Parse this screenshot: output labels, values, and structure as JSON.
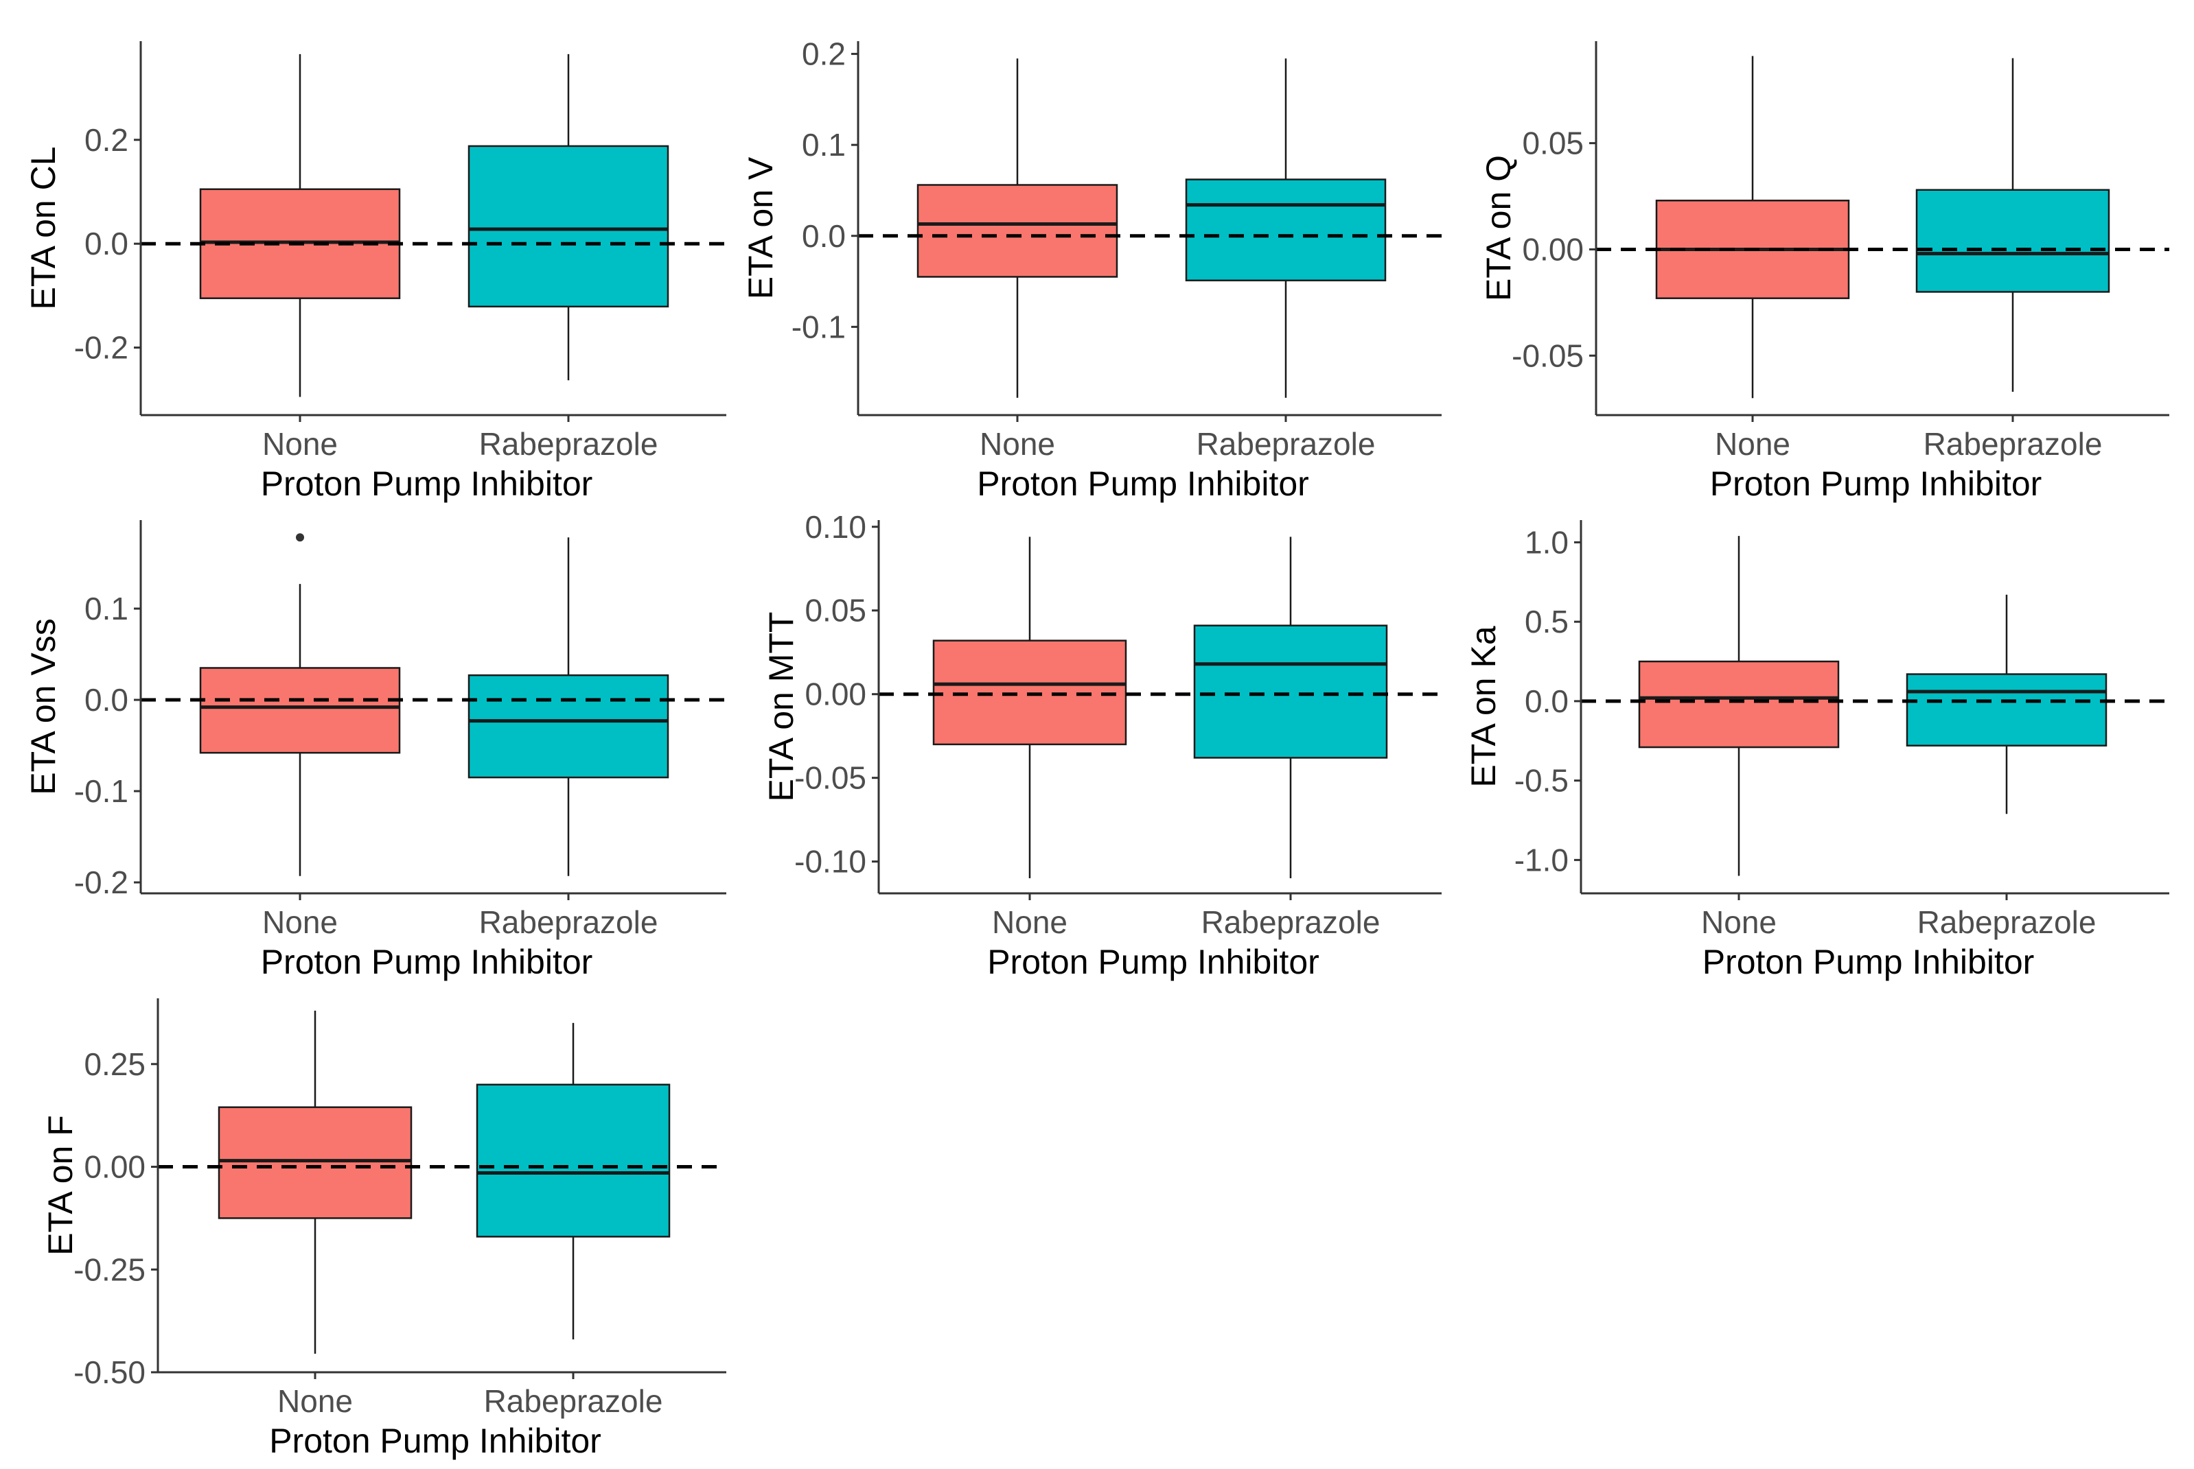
{
  "colors": {
    "none": "#F8766D",
    "rabeprazole": "#00BFC4",
    "box_stroke": "#1a1a1a",
    "axis": "#333333",
    "reference_line": "#000000"
  },
  "chart_data": [
    {
      "type": "boxplot",
      "ylabel": "ETA on CL",
      "xlabel": "Proton Pump Inhibitor",
      "categories": [
        "None",
        "Rabeprazole"
      ],
      "ylim": [
        -0.33,
        0.39
      ],
      "ytick_values": [
        -0.2,
        0.0,
        0.2
      ],
      "ytick_labels": [
        "-0.2",
        "0.0",
        "0.2"
      ],
      "reference_line": 0.0,
      "boxes": [
        {
          "category": "None",
          "whisker_low": -0.295,
          "q1": -0.105,
          "median": 0.003,
          "q3": 0.105,
          "whisker_high": 0.365,
          "outliers": []
        },
        {
          "category": "Rabeprazole",
          "whisker_low": -0.263,
          "q1": -0.121,
          "median": 0.028,
          "q3": 0.188,
          "whisker_high": 0.365,
          "outliers": []
        }
      ]
    },
    {
      "type": "boxplot",
      "ylabel": "ETA on V",
      "xlabel": "Proton Pump Inhibitor",
      "categories": [
        "None",
        "Rabeprazole"
      ],
      "ylim": [
        -0.197,
        0.214
      ],
      "ytick_values": [
        -0.1,
        0.0,
        0.1,
        0.2
      ],
      "ytick_labels": [
        "-0.1",
        "0.0",
        "0.1",
        "0.2"
      ],
      "reference_line": 0.0,
      "boxes": [
        {
          "category": "None",
          "whisker_low": -0.178,
          "q1": -0.045,
          "median": 0.013,
          "q3": 0.056,
          "whisker_high": 0.195,
          "outliers": []
        },
        {
          "category": "Rabeprazole",
          "whisker_low": -0.178,
          "q1": -0.049,
          "median": 0.034,
          "q3": 0.062,
          "whisker_high": 0.195,
          "outliers": []
        }
      ]
    },
    {
      "type": "boxplot",
      "ylabel": "ETA on Q",
      "xlabel": "Proton Pump Inhibitor",
      "categories": [
        "None",
        "Rabeprazole"
      ],
      "ylim": [
        -0.078,
        0.098
      ],
      "ytick_values": [
        -0.05,
        0.0,
        0.05
      ],
      "ytick_labels": [
        "-0.05",
        "0.00",
        "0.05"
      ],
      "reference_line": 0.0,
      "boxes": [
        {
          "category": "None",
          "whisker_low": -0.07,
          "q1": -0.023,
          "median": 0.0,
          "q3": 0.023,
          "whisker_high": 0.091,
          "outliers": []
        },
        {
          "category": "Rabeprazole",
          "whisker_low": -0.067,
          "q1": -0.02,
          "median": -0.002,
          "q3": 0.028,
          "whisker_high": 0.09,
          "outliers": []
        }
      ]
    },
    {
      "type": "boxplot",
      "ylabel": "ETA on Vss",
      "xlabel": "Proton Pump Inhibitor",
      "categories": [
        "None",
        "Rabeprazole"
      ],
      "ylim": [
        -0.212,
        0.197
      ],
      "ytick_values": [
        -0.2,
        -0.1,
        0.0,
        0.1
      ],
      "ytick_labels": [
        "-0.2",
        "-0.1",
        "0.0",
        "0.1"
      ],
      "reference_line": 0.0,
      "boxes": [
        {
          "category": "None",
          "whisker_low": -0.193,
          "q1": -0.058,
          "median": -0.008,
          "q3": 0.035,
          "whisker_high": 0.127,
          "outliers": [
            0.178
          ]
        },
        {
          "category": "Rabeprazole",
          "whisker_low": -0.193,
          "q1": -0.085,
          "median": -0.023,
          "q3": 0.027,
          "whisker_high": 0.178,
          "outliers": []
        }
      ]
    },
    {
      "type": "boxplot",
      "ylabel": "ETA on MTT",
      "xlabel": "Proton Pump Inhibitor",
      "categories": [
        "None",
        "Rabeprazole"
      ],
      "ylim": [
        -0.119,
        0.104
      ],
      "ytick_values": [
        -0.1,
        -0.05,
        0.0,
        0.05,
        0.1
      ],
      "ytick_labels": [
        "-0.10",
        "-0.05",
        "0.00",
        "0.05",
        "0.10"
      ],
      "reference_line": 0.0,
      "boxes": [
        {
          "category": "None",
          "whisker_low": -0.11,
          "q1": -0.03,
          "median": 0.006,
          "q3": 0.032,
          "whisker_high": 0.094,
          "outliers": []
        },
        {
          "category": "Rabeprazole",
          "whisker_low": -0.11,
          "q1": -0.038,
          "median": 0.018,
          "q3": 0.041,
          "whisker_high": 0.094,
          "outliers": []
        }
      ]
    },
    {
      "type": "boxplot",
      "ylabel": "ETA on Ka",
      "xlabel": "Proton Pump Inhibitor",
      "categories": [
        "None",
        "Rabeprazole"
      ],
      "ylim": [
        -1.21,
        1.14
      ],
      "ytick_values": [
        -1.0,
        -0.5,
        0.0,
        0.5,
        1.0
      ],
      "ytick_labels": [
        "-1.0",
        "-0.5",
        "0.0",
        "0.5",
        "1.0"
      ],
      "reference_line": 0.0,
      "boxes": [
        {
          "category": "None",
          "whisker_low": -1.1,
          "q1": -0.29,
          "median": 0.02,
          "q3": 0.25,
          "whisker_high": 1.04,
          "outliers": []
        },
        {
          "category": "Rabeprazole",
          "whisker_low": -0.71,
          "q1": -0.28,
          "median": 0.06,
          "q3": 0.17,
          "whisker_high": 0.67,
          "outliers": []
        }
      ]
    },
    {
      "type": "boxplot",
      "ylabel": "ETA on F",
      "xlabel": "Proton Pump Inhibitor",
      "categories": [
        "None",
        "Rabeprazole"
      ],
      "ylim": [
        -0.5,
        0.41
      ],
      "ytick_values": [
        -0.5,
        -0.25,
        0.0,
        0.25
      ],
      "ytick_labels": [
        "-0.50",
        "-0.25",
        "0.00",
        "0.25"
      ],
      "reference_line": 0.0,
      "boxes": [
        {
          "category": "None",
          "whisker_low": -0.455,
          "q1": -0.125,
          "median": 0.015,
          "q3": 0.145,
          "whisker_high": 0.38,
          "outliers": []
        },
        {
          "category": "Rabeprazole",
          "whisker_low": -0.42,
          "q1": -0.17,
          "median": -0.015,
          "q3": 0.2,
          "whisker_high": 0.35,
          "outliers": []
        }
      ]
    }
  ]
}
